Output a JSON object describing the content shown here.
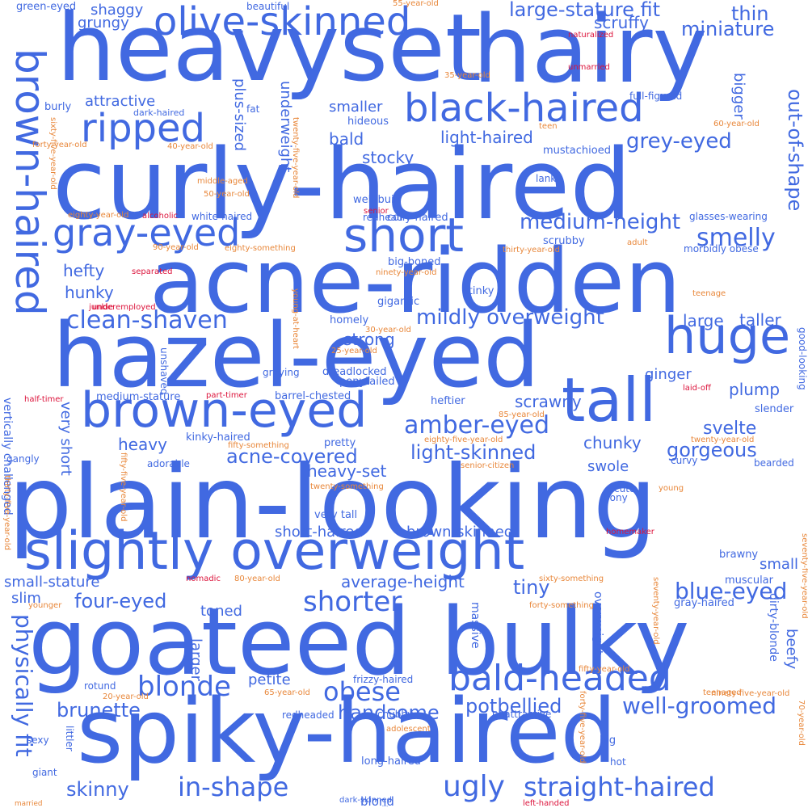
{
  "colors": {
    "blue": "#4169e1",
    "orange": "#e8873a",
    "red": "#dc143c"
  },
  "words": [
    {
      "text": "heavyset"
    },
    {
      "text": "hairy"
    },
    {
      "text": "curly-haired"
    },
    {
      "text": "acne-ridden"
    },
    {
      "text": "hazel-eyed"
    },
    {
      "text": "plain-looking"
    },
    {
      "text": "goateed"
    },
    {
      "text": "bulky"
    },
    {
      "text": "spiky-haired"
    },
    {
      "text": "slightly overweight"
    },
    {
      "text": "brown-eyed"
    },
    {
      "text": "tall"
    },
    {
      "text": "olive-skinned"
    },
    {
      "text": "black-haired"
    },
    {
      "text": "ripped"
    },
    {
      "text": "gray-eyed"
    },
    {
      "text": "short"
    },
    {
      "text": "huge"
    },
    {
      "text": "bald-headed"
    },
    {
      "text": "brown-haired"
    },
    {
      "text": "in-shape"
    },
    {
      "text": "straight-haired"
    },
    {
      "text": "ugly"
    },
    {
      "text": "shorter"
    },
    {
      "text": "clean-shaven"
    },
    {
      "text": "blonde"
    },
    {
      "text": "obese"
    },
    {
      "text": "well-groomed"
    },
    {
      "text": "mildly overweight"
    },
    {
      "text": "amber-eyed"
    },
    {
      "text": "light-skinned"
    },
    {
      "text": "blue-eyed"
    },
    {
      "text": "medium-height"
    },
    {
      "text": "large-stature fit"
    },
    {
      "text": "smelly"
    },
    {
      "text": "grey-eyed"
    },
    {
      "text": "physically fit"
    },
    {
      "text": "acne-covered"
    },
    {
      "text": "gorgeous"
    },
    {
      "text": "four-eyed"
    },
    {
      "text": "brunette"
    },
    {
      "text": "skinny"
    },
    {
      "text": "handsome"
    },
    {
      "text": "potbellied"
    },
    {
      "text": "out-of-shape"
    },
    {
      "text": "miniature"
    },
    {
      "text": "thin"
    },
    {
      "text": "svelte"
    },
    {
      "text": "tiny"
    },
    {
      "text": "average-height"
    },
    {
      "text": "short-haired"
    },
    {
      "text": "brown-skinned"
    },
    {
      "text": "light-haired"
    },
    {
      "text": "plump"
    },
    {
      "text": "heavy-set"
    },
    {
      "text": "scrawny"
    },
    {
      "text": "chunky"
    },
    {
      "text": "smaller"
    },
    {
      "text": "stocky"
    },
    {
      "text": "bald"
    },
    {
      "text": "strong"
    },
    {
      "text": "large"
    },
    {
      "text": "taller"
    },
    {
      "text": "very short"
    },
    {
      "text": "heavy"
    },
    {
      "text": "hefty"
    },
    {
      "text": "hunky"
    },
    {
      "text": "scruffy"
    },
    {
      "text": "shaggy"
    },
    {
      "text": "grungy"
    },
    {
      "text": "attractive"
    },
    {
      "text": "plus-sized"
    },
    {
      "text": "underweight"
    },
    {
      "text": "bigger"
    },
    {
      "text": "small-stature"
    },
    {
      "text": "slim"
    },
    {
      "text": "toned"
    },
    {
      "text": "petite"
    },
    {
      "text": "blond"
    },
    {
      "text": "balding"
    },
    {
      "text": "larger"
    },
    {
      "text": "beefy"
    },
    {
      "text": "small"
    },
    {
      "text": "swole"
    },
    {
      "text": "ginger"
    },
    {
      "text": "dirty-blonde"
    },
    {
      "text": "massive"
    },
    {
      "text": "overweight"
    },
    {
      "text": "vertically challenged"
    },
    {
      "text": "mustachioed"
    },
    {
      "text": "hideous"
    },
    {
      "text": "well-built"
    },
    {
      "text": "coily-haired"
    },
    {
      "text": "scrubby"
    },
    {
      "text": "big-boned"
    },
    {
      "text": "stinky"
    },
    {
      "text": "gigantic"
    },
    {
      "text": "homely"
    },
    {
      "text": "dreadlocked"
    },
    {
      "text": "ponytailed"
    },
    {
      "text": "barrel-chested"
    },
    {
      "text": "heftier"
    },
    {
      "text": "medium-stature"
    },
    {
      "text": "kinky-haired"
    },
    {
      "text": "pretty"
    },
    {
      "text": "very tall"
    },
    {
      "text": "cute"
    },
    {
      "text": "bony"
    },
    {
      "text": "muscular"
    },
    {
      "text": "gray-haired"
    },
    {
      "text": "brawny"
    },
    {
      "text": "curvy"
    },
    {
      "text": "slender"
    },
    {
      "text": "bearded"
    },
    {
      "text": "good-looking"
    },
    {
      "text": "glasses-wearing"
    },
    {
      "text": "morbidly obese"
    },
    {
      "text": "full-figured"
    },
    {
      "text": "lanky"
    },
    {
      "text": "white-haired"
    },
    {
      "text": "dark-haired"
    },
    {
      "text": "burly"
    },
    {
      "text": "fat"
    },
    {
      "text": "graying"
    },
    {
      "text": "unshaved"
    },
    {
      "text": "redhead"
    },
    {
      "text": "frizzy-haired"
    },
    {
      "text": "rotund"
    },
    {
      "text": "gangly"
    },
    {
      "text": "adorable"
    },
    {
      "text": "sexy"
    },
    {
      "text": "giant"
    },
    {
      "text": "littler"
    },
    {
      "text": "chubby"
    },
    {
      "text": "long-haired"
    },
    {
      "text": "unattractive"
    },
    {
      "text": "redheaded"
    },
    {
      "text": "big"
    },
    {
      "text": "hot"
    },
    {
      "text": "green-eyed"
    },
    {
      "text": "beautiful"
    },
    {
      "text": "dark-skinned"
    },
    {
      "text": "55-year-old"
    },
    {
      "text": "naturalized"
    },
    {
      "text": "unmarried"
    },
    {
      "text": "35-year-old"
    },
    {
      "text": "60-year-old"
    },
    {
      "text": "forty-year-old"
    },
    {
      "text": "40-year-old"
    },
    {
      "text": "middle-aged"
    },
    {
      "text": "50-year-old"
    },
    {
      "text": "sixty-five-year-old"
    },
    {
      "text": "twenty-five-year-old"
    },
    {
      "text": "eighty-year-old"
    },
    {
      "text": "alcoholic"
    },
    {
      "text": "senior"
    },
    {
      "text": "90-year-old"
    },
    {
      "text": "eighty-something"
    },
    {
      "text": "junkie"
    },
    {
      "text": "separated"
    },
    {
      "text": "underemployed"
    },
    {
      "text": "ninety-year-old"
    },
    {
      "text": "thirty-year-old"
    },
    {
      "text": "adult"
    },
    {
      "text": "teen"
    },
    {
      "text": "teenage"
    },
    {
      "text": "30-year-old"
    },
    {
      "text": "25-year-old"
    },
    {
      "text": "young-at-heart"
    },
    {
      "text": "half-timer"
    },
    {
      "text": "part-timer"
    },
    {
      "text": "laid-off"
    },
    {
      "text": "85-year-old"
    },
    {
      "text": "eighty-five-year-old"
    },
    {
      "text": "twenty-year-old"
    },
    {
      "text": "fifty-something"
    },
    {
      "text": "fifty-five-year-old"
    },
    {
      "text": "senior-citizen"
    },
    {
      "text": "twenty-something"
    },
    {
      "text": "young"
    },
    {
      "text": "thirty-five-year-old"
    },
    {
      "text": "homemaker"
    },
    {
      "text": "seventy-five-year-old"
    },
    {
      "text": "nomadic"
    },
    {
      "text": "80-year-old"
    },
    {
      "text": "sixty-something"
    },
    {
      "text": "younger"
    },
    {
      "text": "forty-something"
    },
    {
      "text": "seventy-year-old"
    },
    {
      "text": "fifty-year-old"
    },
    {
      "text": "65-year-old"
    },
    {
      "text": "teenaged"
    },
    {
      "text": "20-year-old"
    },
    {
      "text": "ninety-five-year-old"
    },
    {
      "text": "70-year-old"
    },
    {
      "text": "adolescent"
    },
    {
      "text": "forty-five-year-old"
    },
    {
      "text": "married"
    },
    {
      "text": "left-handed"
    }
  ]
}
